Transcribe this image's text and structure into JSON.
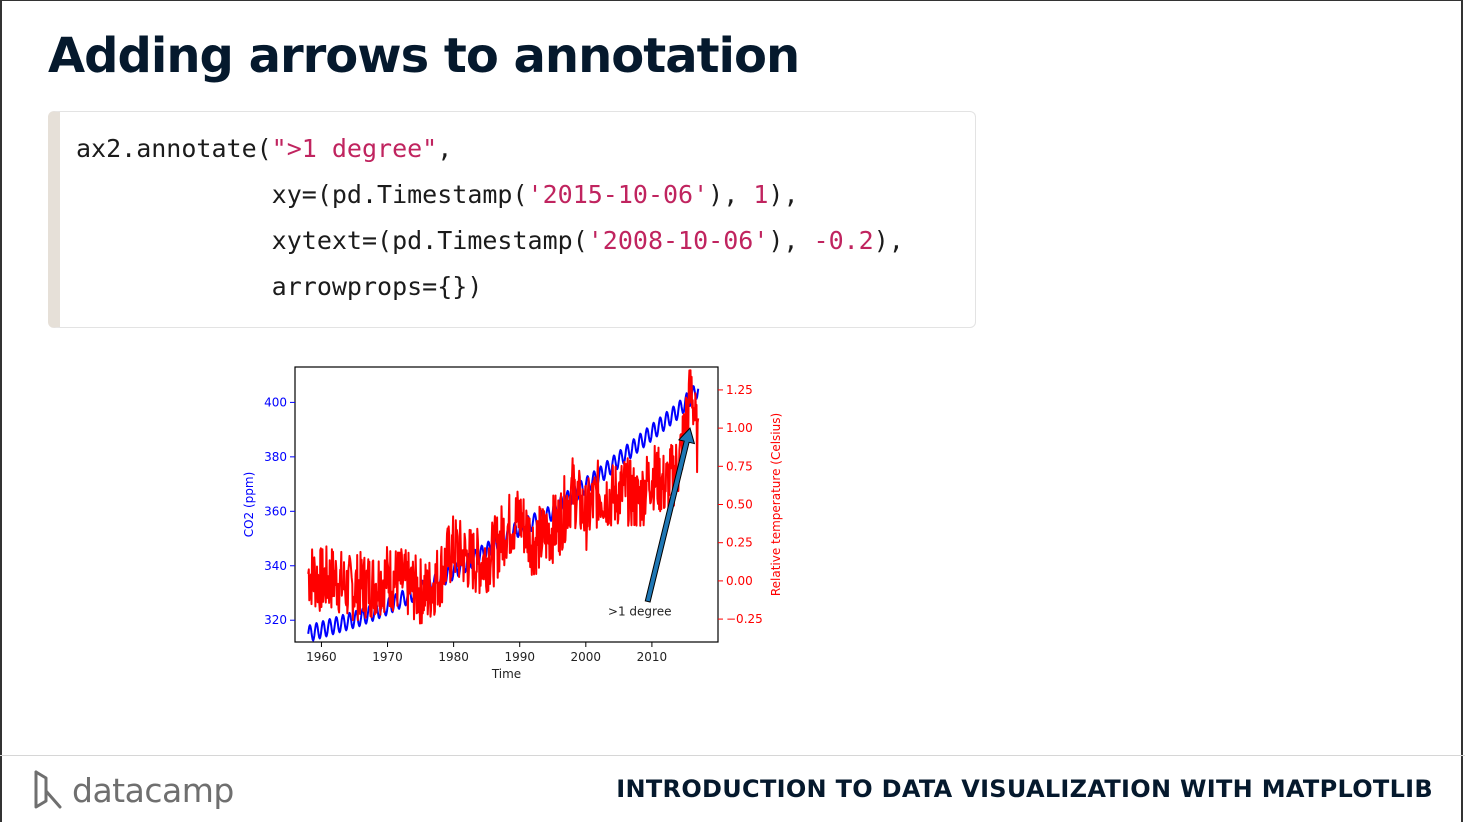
{
  "slide": {
    "title": "Adding arrows to annotation",
    "footer_logo": "datacamp",
    "footer_course": "INTRODUCTION TO DATA VISUALIZATION WITH MATPLOTLIB"
  },
  "code": {
    "lines": [
      [
        {
          "t": "ax2.annotate(",
          "c": "plain"
        },
        {
          "t": "\">1 degree\"",
          "c": "str"
        },
        {
          "t": ",",
          "c": "plain"
        }
      ],
      [
        {
          "t": "             xy=(pd.Timestamp(",
          "c": "plain"
        },
        {
          "t": "'2015-10-06'",
          "c": "str"
        },
        {
          "t": "), ",
          "c": "plain"
        },
        {
          "t": "1",
          "c": "num"
        },
        {
          "t": "),",
          "c": "plain"
        }
      ],
      [
        {
          "t": "             xytext=(pd.Timestamp(",
          "c": "plain"
        },
        {
          "t": "'2008-10-06'",
          "c": "str"
        },
        {
          "t": "), ",
          "c": "plain"
        },
        {
          "t": "-0.2",
          "c": "num"
        },
        {
          "t": "),",
          "c": "plain"
        }
      ],
      [
        {
          "t": "             arrowprops={})",
          "c": "plain"
        }
      ]
    ]
  },
  "chart_data": {
    "type": "line",
    "xlabel": "Time",
    "ylabel_left": "CO2 (ppm)",
    "ylabel_right": "Relative temperature (Celsius)",
    "xlim": [
      1956,
      2020
    ],
    "ylim_left": [
      312,
      413
    ],
    "ylim_right": [
      -0.4,
      1.4
    ],
    "x_ticks": [
      1960,
      1970,
      1980,
      1990,
      2000,
      2010
    ],
    "y_left_ticks": [
      320,
      340,
      360,
      380,
      400
    ],
    "y_right_ticks": [
      "-0.25",
      "0.00",
      "0.25",
      "0.50",
      "0.75",
      "1.00",
      "1.25"
    ],
    "annotation": {
      "text": ">1 degree",
      "xy": [
        2015.76,
        1.0
      ],
      "xytext": [
        2008.76,
        -0.2
      ]
    },
    "series": [
      {
        "axis": "left",
        "color": "#0000ff",
        "x": [
          1958,
          1962,
          1966,
          1970,
          1974,
          1978,
          1982,
          1986,
          1990,
          1994,
          1998,
          2002,
          2006,
          2010,
          2014,
          2017
        ],
        "y": [
          315,
          318,
          321,
          325,
          330,
          335,
          341,
          347,
          354,
          358,
          366,
          373,
          381,
          389,
          397,
          405
        ]
      },
      {
        "axis": "right",
        "color": "#ff0000",
        "x": [
          1958,
          1960,
          1962,
          1964,
          1966,
          1968,
          1970,
          1972,
          1974,
          1976,
          1978,
          1980,
          1982,
          1984,
          1986,
          1988,
          1990,
          1992,
          1994,
          1996,
          1998,
          2000,
          2002,
          2004,
          2006,
          2008,
          2010,
          2012,
          2014,
          2015,
          2016,
          2017
        ],
        "y": [
          0.05,
          0.0,
          0.02,
          -0.05,
          -0.03,
          -0.02,
          0.03,
          0.0,
          -0.05,
          -0.08,
          0.05,
          0.22,
          0.15,
          0.12,
          0.18,
          0.35,
          0.42,
          0.25,
          0.3,
          0.38,
          0.6,
          0.42,
          0.58,
          0.55,
          0.6,
          0.52,
          0.7,
          0.62,
          0.75,
          1.0,
          1.28,
          0.85
        ]
      }
    ]
  }
}
